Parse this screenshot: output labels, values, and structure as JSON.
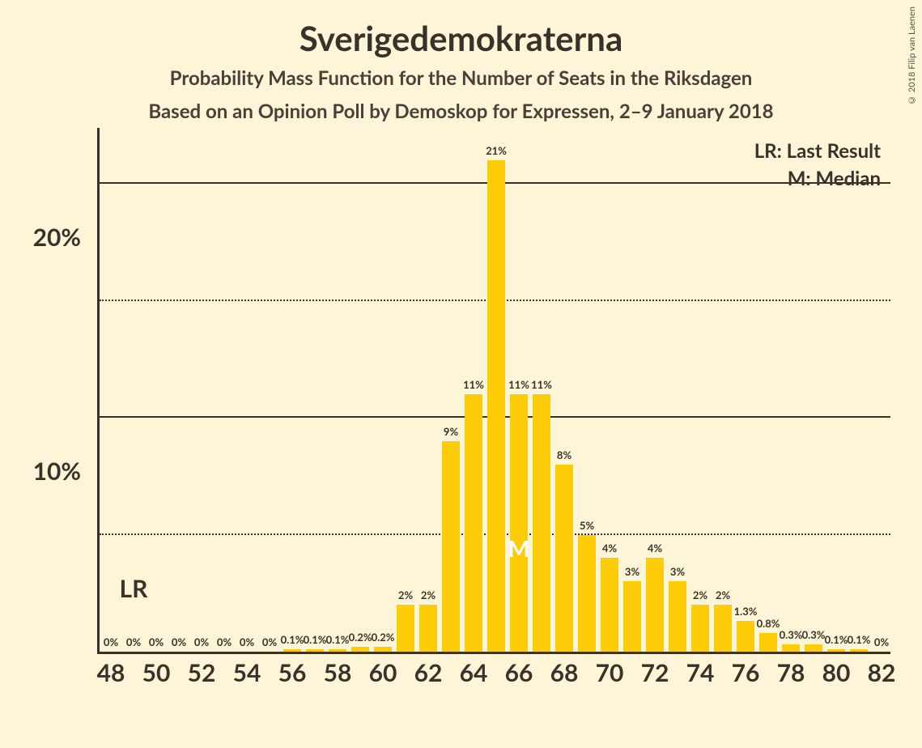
{
  "title": "Sverigedemokraterna",
  "subtitle_line1": "Probability Mass Function for the Number of Seats in the Riksdagen",
  "subtitle_line2": "Based on an Opinion Poll by Demoskop for Expressen, 2–9 January 2018",
  "copyright": "© 2018 Filip van Laenen",
  "legend": {
    "lr": "LR: Last Result",
    "m": "M: Median"
  },
  "chart": {
    "type": "bar",
    "background_color": "#fcf5d8",
    "bar_color": "#fdcc09",
    "axis_color": "#3a322a",
    "gridline_color": "#3a322a",
    "text_color": "#3a322a",
    "median_text_color": "#ffffff",
    "x_min": 48,
    "x_max": 82,
    "x_tick_step": 2,
    "y_min": 0,
    "y_max": 22.5,
    "y_major_ticks": [
      10,
      20
    ],
    "y_minor_ticks": [
      5,
      15
    ],
    "y_tick_suffix": "%",
    "bar_width_ratio": 0.82,
    "last_result_x": 49,
    "last_result_label": "LR",
    "median_x": 66,
    "median_label": "M",
    "title_fontsize": 42,
    "subtitle_fontsize": 24,
    "axis_label_fontsize": 30,
    "bar_label_fontsize": 13,
    "series": [
      {
        "x": 48,
        "y": 0,
        "label": "0%"
      },
      {
        "x": 49,
        "y": 0,
        "label": "0%"
      },
      {
        "x": 50,
        "y": 0,
        "label": "0%"
      },
      {
        "x": 51,
        "y": 0,
        "label": "0%"
      },
      {
        "x": 52,
        "y": 0,
        "label": "0%"
      },
      {
        "x": 53,
        "y": 0,
        "label": "0%"
      },
      {
        "x": 54,
        "y": 0,
        "label": "0%"
      },
      {
        "x": 55,
        "y": 0,
        "label": "0%"
      },
      {
        "x": 56,
        "y": 0.1,
        "label": "0.1%"
      },
      {
        "x": 57,
        "y": 0.1,
        "label": "0.1%"
      },
      {
        "x": 58,
        "y": 0.1,
        "label": "0.1%"
      },
      {
        "x": 59,
        "y": 0.2,
        "label": "0.2%"
      },
      {
        "x": 60,
        "y": 0.2,
        "label": "0.2%"
      },
      {
        "x": 61,
        "y": 2,
        "label": "2%"
      },
      {
        "x": 62,
        "y": 2,
        "label": "2%"
      },
      {
        "x": 63,
        "y": 9,
        "label": "9%"
      },
      {
        "x": 64,
        "y": 11,
        "label": "11%"
      },
      {
        "x": 65,
        "y": 21,
        "label": "21%"
      },
      {
        "x": 66,
        "y": 11,
        "label": "11%"
      },
      {
        "x": 67,
        "y": 11,
        "label": "11%"
      },
      {
        "x": 68,
        "y": 8,
        "label": "8%"
      },
      {
        "x": 69,
        "y": 5,
        "label": "5%"
      },
      {
        "x": 70,
        "y": 4,
        "label": "4%"
      },
      {
        "x": 71,
        "y": 3,
        "label": "3%"
      },
      {
        "x": 72,
        "y": 4,
        "label": "4%"
      },
      {
        "x": 73,
        "y": 3,
        "label": "3%"
      },
      {
        "x": 74,
        "y": 2,
        "label": "2%"
      },
      {
        "x": 75,
        "y": 2,
        "label": "2%"
      },
      {
        "x": 76,
        "y": 1.3,
        "label": "1.3%"
      },
      {
        "x": 77,
        "y": 0.8,
        "label": "0.8%"
      },
      {
        "x": 78,
        "y": 0.3,
        "label": "0.3%"
      },
      {
        "x": 79,
        "y": 0.3,
        "label": "0.3%"
      },
      {
        "x": 80,
        "y": 0.1,
        "label": "0.1%"
      },
      {
        "x": 81,
        "y": 0.1,
        "label": "0.1%"
      },
      {
        "x": 82,
        "y": 0,
        "label": "0%"
      }
    ]
  }
}
